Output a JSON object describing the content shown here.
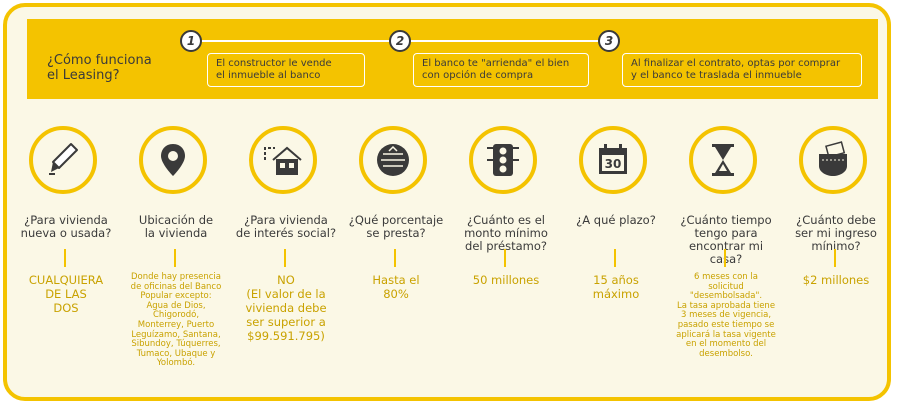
{
  "question": {
    "line1": "¿Cómo funciona",
    "line2": "el Leasing?"
  },
  "steps": [
    {
      "num": "1",
      "line1": "El constructor le vende",
      "line2": "el inmueble al banco"
    },
    {
      "num": "2",
      "line1": "El banco te \"arrienda\" el bien",
      "line2": "con opción de compra"
    },
    {
      "num": "3",
      "line1": "Al finalizar el contrato, optas por comprar",
      "line2": "y el banco te traslada el inmueble"
    }
  ],
  "columns": [
    {
      "icon": "pen-icon",
      "q": [
        "¿Para vivienda",
        "nueva o usada?"
      ],
      "a": [
        "CUALQUIERA",
        "DE LAS",
        "DOS"
      ]
    },
    {
      "icon": "location-pin-icon",
      "q": [
        "Ubicación de",
        "la vivienda"
      ],
      "a": [
        "Donde hay presencia",
        "de oficinas del Banco",
        "Popular excepto:",
        "Agua de Dios,",
        "Chigorodó,",
        "Monterrey, Puerto",
        "Leguízamo, Santana,",
        "Sibundoy,  Túquerres,",
        "Tumaco, Ubaque y",
        "Yolombó."
      ]
    },
    {
      "icon": "house-icon",
      "q": [
        "¿Para vivienda",
        "de interés social?"
      ],
      "a": [
        "NO",
        "(El valor de la",
        "vivienda debe",
        "ser superior a",
        "$99.591.795)"
      ]
    },
    {
      "icon": "percentage-gauge-icon",
      "q": [
        "¿Qué porcentaje",
        "se presta?"
      ],
      "a": [
        "Hasta el",
        "80%"
      ]
    },
    {
      "icon": "traffic-light-icon",
      "q": [
        "¿Cuánto es el",
        "monto mínimo",
        "del préstamo?"
      ],
      "a": [
        "50 millones"
      ]
    },
    {
      "icon": "calendar-icon",
      "calendar_number": "30",
      "q": [
        "¿A qué plazo?"
      ],
      "a": [
        "15 años",
        "máximo"
      ]
    },
    {
      "icon": "hourglass-icon",
      "q": [
        "¿Cuánto tiempo",
        "tengo para",
        "encontrar mi casa?"
      ],
      "a": [
        "6 meses con la",
        "solicitud",
        "\"desembolsada\".",
        "La tasa aprobada tiene",
        "3 meses de vigencia,",
        "pasado este tiempo se",
        "aplicará la tasa vigente",
        "en el momento del",
        "desembolso."
      ]
    },
    {
      "icon": "money-pocket-icon",
      "q": [
        "¿Cuánto debe",
        "ser mi ingreso",
        "mínimo?"
      ],
      "a": [
        "$2 millones"
      ]
    }
  ],
  "colors": {
    "accent": "#f4c300",
    "background": "#fbf8e6",
    "text": "#3a3a3a",
    "answer": "#c9a200"
  }
}
